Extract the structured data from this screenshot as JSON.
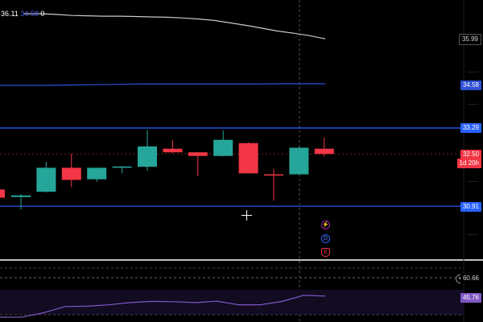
{
  "legend": {
    "v1": "36.11",
    "v2": "34.58",
    "v3": "0"
  },
  "price_axis": {
    "ma_white": "35.99",
    "ma_blue": "34.58",
    "line_upper": "33.29",
    "last_price": "32.50",
    "countdown": "1d 20h",
    "line_lower": "30.91"
  },
  "rsi_axis": {
    "level": "60.66",
    "value": "45.76"
  },
  "events": {
    "e1": "⚡",
    "e2": "D",
    "e3": "E"
  },
  "colors": {
    "bull": "#26a69a",
    "bear": "#f23645",
    "blue_line": "#2962ff",
    "ma_white": "#c9c9c9",
    "ma_blue": "#2f4fd6",
    "rsi": "#7e57c2",
    "price_dash": "#f23645"
  },
  "chart_data": {
    "type": "candlestick",
    "candles": [
      {
        "o": 31.42,
        "h": 31.42,
        "l": 31.17,
        "c": 31.17
      },
      {
        "o": 31.19,
        "h": 31.28,
        "l": 30.81,
        "c": 31.24
      },
      {
        "o": 31.35,
        "h": 32.26,
        "l": 31.33,
        "c": 32.08
      },
      {
        "o": 32.08,
        "h": 32.52,
        "l": 31.49,
        "c": 31.71
      },
      {
        "o": 31.73,
        "h": 32.08,
        "l": 31.65,
        "c": 32.08
      },
      {
        "o": 32.08,
        "h": 32.13,
        "l": 31.92,
        "c": 32.12
      },
      {
        "o": 32.11,
        "h": 33.23,
        "l": 31.99,
        "c": 32.73
      },
      {
        "o": 32.66,
        "h": 32.93,
        "l": 32.52,
        "c": 32.55
      },
      {
        "o": 32.55,
        "h": 32.55,
        "l": 31.83,
        "c": 32.44
      },
      {
        "o": 32.44,
        "h": 33.21,
        "l": 32.43,
        "c": 32.93
      },
      {
        "o": 32.83,
        "h": 32.85,
        "l": 31.91,
        "c": 31.91
      },
      {
        "o": 31.88,
        "h": 32.05,
        "l": 31.08,
        "c": 31.85
      },
      {
        "o": 31.88,
        "h": 32.71,
        "l": 31.88,
        "c": 32.69
      },
      {
        "o": 32.66,
        "h": 33.0,
        "l": 32.42,
        "c": 32.5
      }
    ],
    "ma_white": [
      36.11,
      36.11,
      36.09,
      36.06,
      36.05,
      36.04,
      36.04,
      36.03,
      36.02,
      36.01,
      35.99,
      35.96,
      35.92,
      35.85,
      35.78,
      35.7,
      35.62,
      35.56,
      35.49,
      35.4
    ],
    "ma_blue": [
      34.58,
      34.58,
      34.58,
      34.59,
      34.6,
      34.61,
      34.62,
      34.62,
      34.62,
      34.62,
      34.62,
      34.62,
      34.63,
      34.63,
      34.63
    ],
    "h_lines": [
      33.29,
      30.91
    ],
    "last_price": 32.5,
    "rsi": [
      36.5,
      36.5,
      40.1,
      45.3,
      45.6,
      46.7,
      48.6,
      49.6,
      49.3,
      48.6,
      49.7,
      46.8,
      46.8,
      49.5,
      54.6,
      54.0
    ],
    "rsi_level": 60.66
  }
}
